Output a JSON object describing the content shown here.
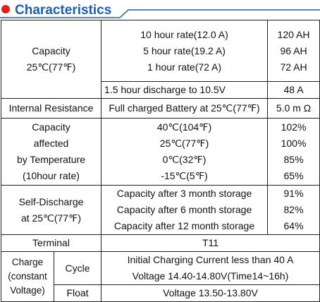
{
  "header": {
    "title": "Characteristics"
  },
  "table": {
    "capacity": {
      "label": [
        "Capacity",
        "25℃(77℉)"
      ],
      "conditions": [
        "10 hour rate(12.0 A)",
        "5 hour rate(19.2 A)",
        "1 hour rate(72 A)"
      ],
      "values": [
        "120 AH",
        "96 AH",
        "72 AH"
      ],
      "discharge": {
        "condition": "1.5 hour discharge to 10.5V",
        "value": "48 A"
      }
    },
    "internal_resistance": {
      "label": "Internal Resistance",
      "condition": "Full charged Battery at 25℃(77℉)",
      "value": "5.0 m Ω"
    },
    "temperature": {
      "label": [
        "Capacity",
        "affected",
        "by Temperature",
        "(10hour rate)"
      ],
      "conditions": [
        "40℃(104℉)",
        "25℃(77℉)",
        "0℃(32℉)",
        "-15℃(5℉)"
      ],
      "values": [
        "102%",
        "100%",
        "85%",
        "65%"
      ]
    },
    "self_discharge": {
      "label": [
        "Self-Discharge",
        "at 25℃(77℉)"
      ],
      "conditions": [
        "Capacity after 3 month storage",
        "Capacity after 6 month storage",
        "Capacity after 12 month storage"
      ],
      "values": [
        "91%",
        "82%",
        "64%"
      ]
    },
    "terminal": {
      "label": "Terminal",
      "value": "T11"
    },
    "charge": {
      "label": [
        "Charge",
        "(constant",
        "Voltage)"
      ],
      "cycle": {
        "label": "Cycle",
        "lines": [
          "Initial Charging Current less than 40 A",
          "Voltage 14.40-14.80V(Time14~16h)"
        ]
      },
      "float": {
        "label": "Float",
        "value": "Voltage 13.50-13.80V"
      }
    }
  }
}
